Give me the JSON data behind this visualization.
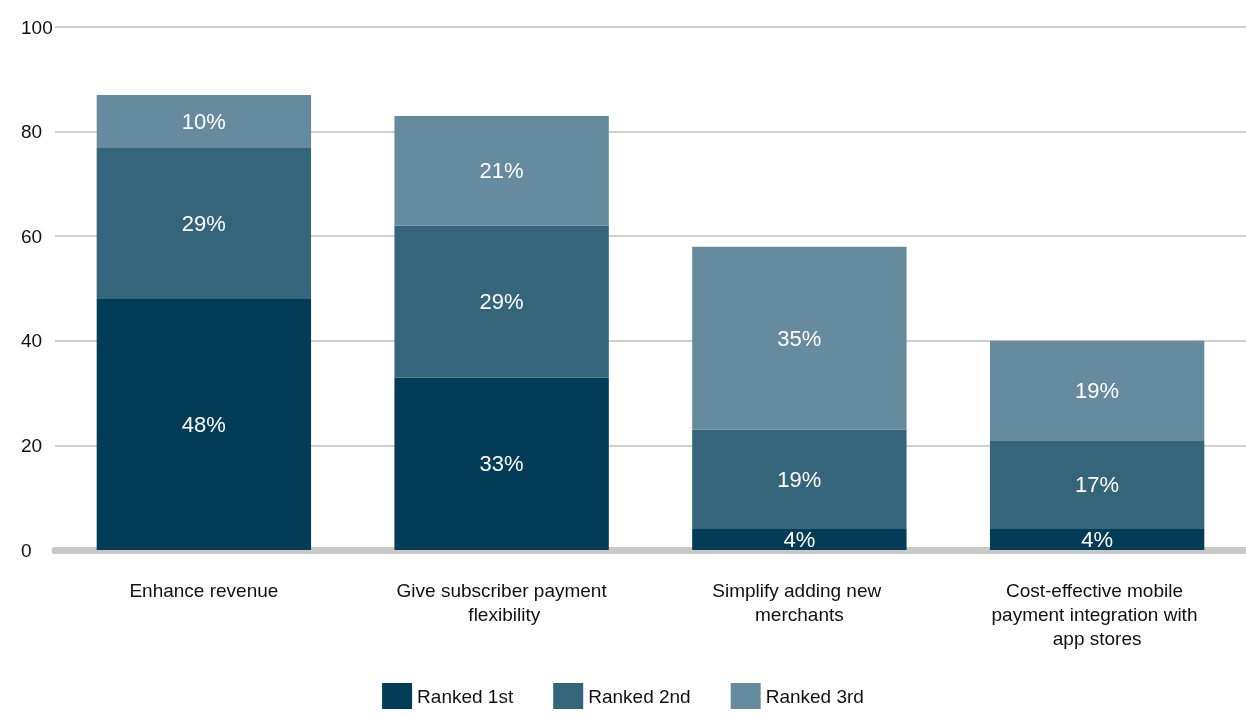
{
  "chart_data": {
    "type": "bar",
    "stacked": true,
    "categories": [
      "Enhance revenue",
      "Give subscriber payment flexibility",
      "Simplify adding new merchants",
      "Cost-effective mobile payment integration with app stores"
    ],
    "series": [
      {
        "name": "Ranked 1st",
        "color": "#033c57",
        "values": [
          48,
          33,
          4,
          4
        ],
        "value_labels": [
          "48%",
          "33%",
          "4%",
          "4%"
        ]
      },
      {
        "name": "Ranked 2nd",
        "color": "#34657b",
        "values": [
          29,
          29,
          19,
          17
        ],
        "value_labels": [
          "29%",
          "29%",
          "19%",
          "17%"
        ]
      },
      {
        "name": "Ranked 3rd",
        "color": "#668a9e",
        "values": [
          10,
          21,
          35,
          19
        ],
        "value_labels": [
          "10%",
          "21%",
          "35%",
          "19%"
        ]
      }
    ],
    "ylim": [
      0,
      100
    ],
    "yticks": [
      0,
      20,
      40,
      60,
      80,
      100
    ],
    "grid": "y",
    "legend": "bottom"
  }
}
